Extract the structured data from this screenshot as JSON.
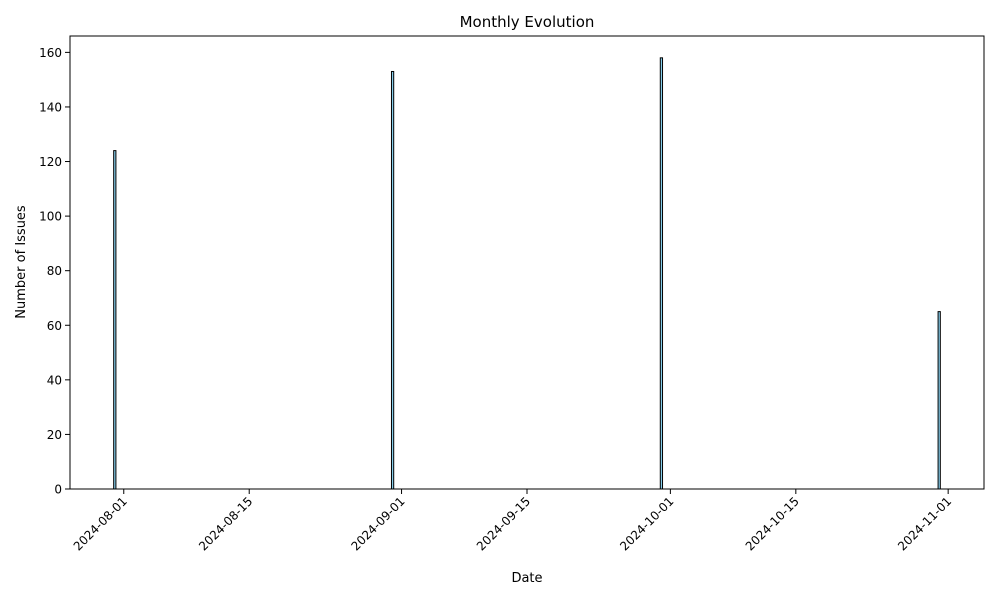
{
  "chart_data": {
    "type": "bar",
    "title": "Monthly Evolution",
    "xlabel": "Date",
    "ylabel": "Number of Issues",
    "x": [
      "2024-07-31",
      "2024-08-31",
      "2024-09-30",
      "2024-10-31"
    ],
    "values": [
      124,
      153,
      158,
      65
    ],
    "xlim": [
      "2024-07-26",
      "2024-11-05"
    ],
    "ylim": [
      0,
      166
    ],
    "xticks": [
      "2024-08-01",
      "2024-08-15",
      "2024-09-01",
      "2024-09-15",
      "2024-10-01",
      "2024-10-15",
      "2024-11-01"
    ],
    "yticks": [
      0,
      20,
      40,
      60,
      80,
      100,
      120,
      140,
      160
    ],
    "bar_color": "#87ceeb",
    "bar_edge_color": "#000000",
    "grid": false,
    "legend": false
  }
}
